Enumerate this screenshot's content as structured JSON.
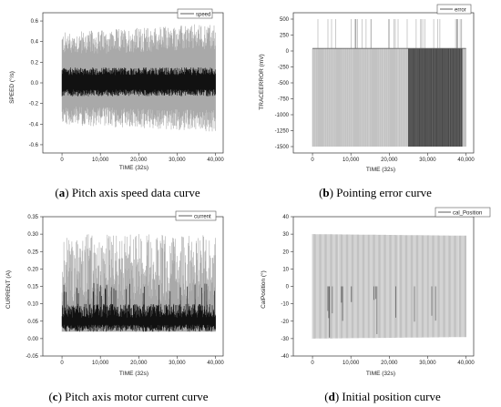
{
  "figure": {
    "panels": [
      {
        "id": "a",
        "caption_letter": "a",
        "caption_text": "Pitch axis speed data curve"
      },
      {
        "id": "b",
        "caption_letter": "b",
        "caption_text": "Pointing error curve"
      },
      {
        "id": "c",
        "caption_letter": "c",
        "caption_text": "Pitch axis motor current curve"
      },
      {
        "id": "d",
        "caption_letter": "d",
        "caption_text": "Initial position curve"
      }
    ]
  },
  "chart_data": [
    {
      "type": "line",
      "xlabel": "TIME (32s)",
      "ylabel": "SPEED (°/s)",
      "legend": "speed",
      "legend_position": "top-right",
      "xlim": [
        -5000,
        42000
      ],
      "ylim": [
        -0.68,
        0.68
      ],
      "xticks": [
        "0",
        "10,000",
        "20,000",
        "30,000",
        "40,000"
      ],
      "yticks": [
        "-0.6",
        "-0.4",
        "-0.2",
        "0.0",
        "0.2",
        "0.4",
        "0.6"
      ],
      "x_range": [
        0,
        40000
      ],
      "envelope": {
        "light_max": 0.58,
        "light_min": -0.48,
        "dark_max": 0.15,
        "dark_min": -0.13,
        "center": 0.0
      },
      "colors": {
        "light": "#a9a9a9",
        "dark": "#111111"
      }
    },
    {
      "type": "line",
      "xlabel": "TIME (32s)",
      "ylabel": "TRACEERROR (mV)",
      "legend": "error",
      "legend_position": "top-right",
      "xlim": [
        -5000,
        42000
      ],
      "ylim": [
        -1600,
        600
      ],
      "xticks": [
        "0",
        "10,000",
        "20,000",
        "30,000",
        "40,000"
      ],
      "yticks": [
        "-1500",
        "-1250",
        "-1000",
        "-750",
        "-500",
        "-250",
        "0",
        "250",
        "500"
      ],
      "x_range": [
        0,
        40000
      ],
      "levels": {
        "high": 500,
        "baseline": 40,
        "low": -1500
      },
      "dense_region": [
        25000,
        39000
      ],
      "colors": {
        "light": "#a9a9a9",
        "dark": "#4a4a4a"
      }
    },
    {
      "type": "line",
      "xlabel": "TIME (32s)",
      "ylabel": "CURRENT (A)",
      "legend": "current",
      "legend_position": "top-right",
      "xlim": [
        -5000,
        42000
      ],
      "ylim": [
        -0.05,
        0.35
      ],
      "xticks": [
        "0",
        "10,000",
        "20,000",
        "30,000",
        "40,000"
      ],
      "yticks": [
        "-0.05",
        "0.00",
        "0.05",
        "0.10",
        "0.15",
        "0.20",
        "0.25",
        "0.30",
        "0.35"
      ],
      "x_range": [
        0,
        40000
      ],
      "envelope": {
        "light_max": 0.3,
        "light_min": 0.02,
        "dark_max": 0.1,
        "dark_min": 0.04,
        "floor": 0.02
      },
      "colors": {
        "light": "#a9a9a9",
        "dark": "#111111"
      }
    },
    {
      "type": "line",
      "xlabel": "TIME (32s)",
      "ylabel": "CalPosition (°)",
      "legend": "cal_Position",
      "legend_position": "top-right",
      "xlim": [
        -5000,
        42000
      ],
      "ylim": [
        -40,
        40
      ],
      "xticks": [
        "0",
        "10,000",
        "20,000",
        "30,000",
        "40,000"
      ],
      "yticks": [
        "-40",
        "-30",
        "-20",
        "-10",
        "0",
        "10",
        "20",
        "30",
        "40"
      ],
      "x_range": [
        0,
        40000
      ],
      "amplitude": 30,
      "colors": {
        "light": "#a9a9a9",
        "dark": "#555555"
      }
    }
  ]
}
